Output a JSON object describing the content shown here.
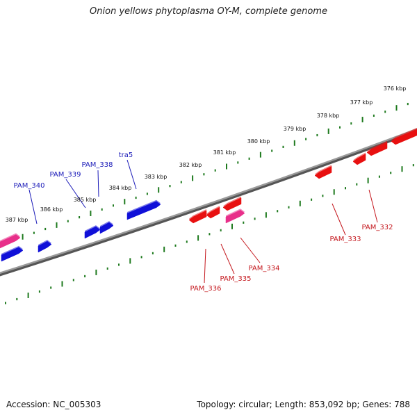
{
  "title": "Onion yellows phytoplasma OY-M, complete genome",
  "footer": {
    "accession": "Accession: NC_005303",
    "summary": "Topology: circular; Length: 853,092 bp; Genes: 788"
  },
  "colors": {
    "backbone": "#7a7a7a",
    "ticks": "#1e7a1e",
    "forward_gene": "#1010d8",
    "reverse_gene": "#e81010",
    "rna_gene": "#e8308a",
    "forward_label": "#1a1ab8",
    "reverse_label": "#c4161c"
  },
  "ruler_labels": [
    "376 kbp",
    "377 kbp",
    "378 kbp",
    "379 kbp",
    "380 kbp",
    "381 kbp",
    "382 kbp",
    "383 kbp",
    "384 kbp",
    "385 kbp",
    "386 kbp",
    "387 kbp"
  ],
  "gene_labels": {
    "forward": [
      "tra5",
      "PAM_338",
      "PAM_339",
      "PAM_340"
    ],
    "reverse": [
      "PAM_332",
      "PAM_333",
      "PAM_334",
      "PAM_335",
      "PAM_336"
    ]
  }
}
